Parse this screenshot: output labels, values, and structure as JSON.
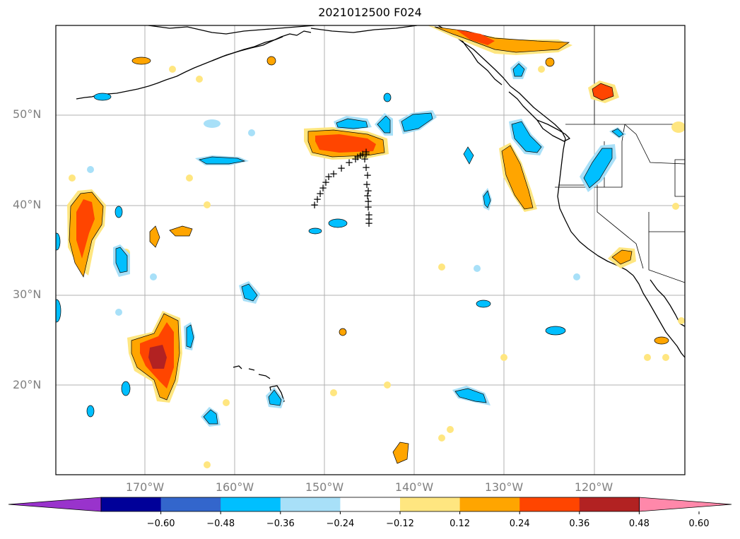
{
  "title": "2021012500 F024",
  "lat_labels": [
    "50°N",
    "40°N",
    "30°N",
    "20°N"
  ],
  "lon_labels": [
    "170°W",
    "160°W",
    "150°W",
    "140°W",
    "130°W",
    "120°W"
  ],
  "colorbar": {
    "ticks": [
      "−0.60",
      "−0.48",
      "−0.36",
      "−0.24",
      "−0.12",
      "0.12",
      "0.24",
      "0.36",
      "0.48",
      "0.60"
    ],
    "colors": [
      "#9933cc",
      "#000099",
      "#3366cc",
      "#00bfff",
      "#a8e0f8",
      "#ffffff",
      "#ffe680",
      "#ffa500",
      "#ff4500",
      "#b22222",
      "#ff88aa"
    ]
  },
  "markers": {
    "symbol": "+",
    "count": 26
  }
}
